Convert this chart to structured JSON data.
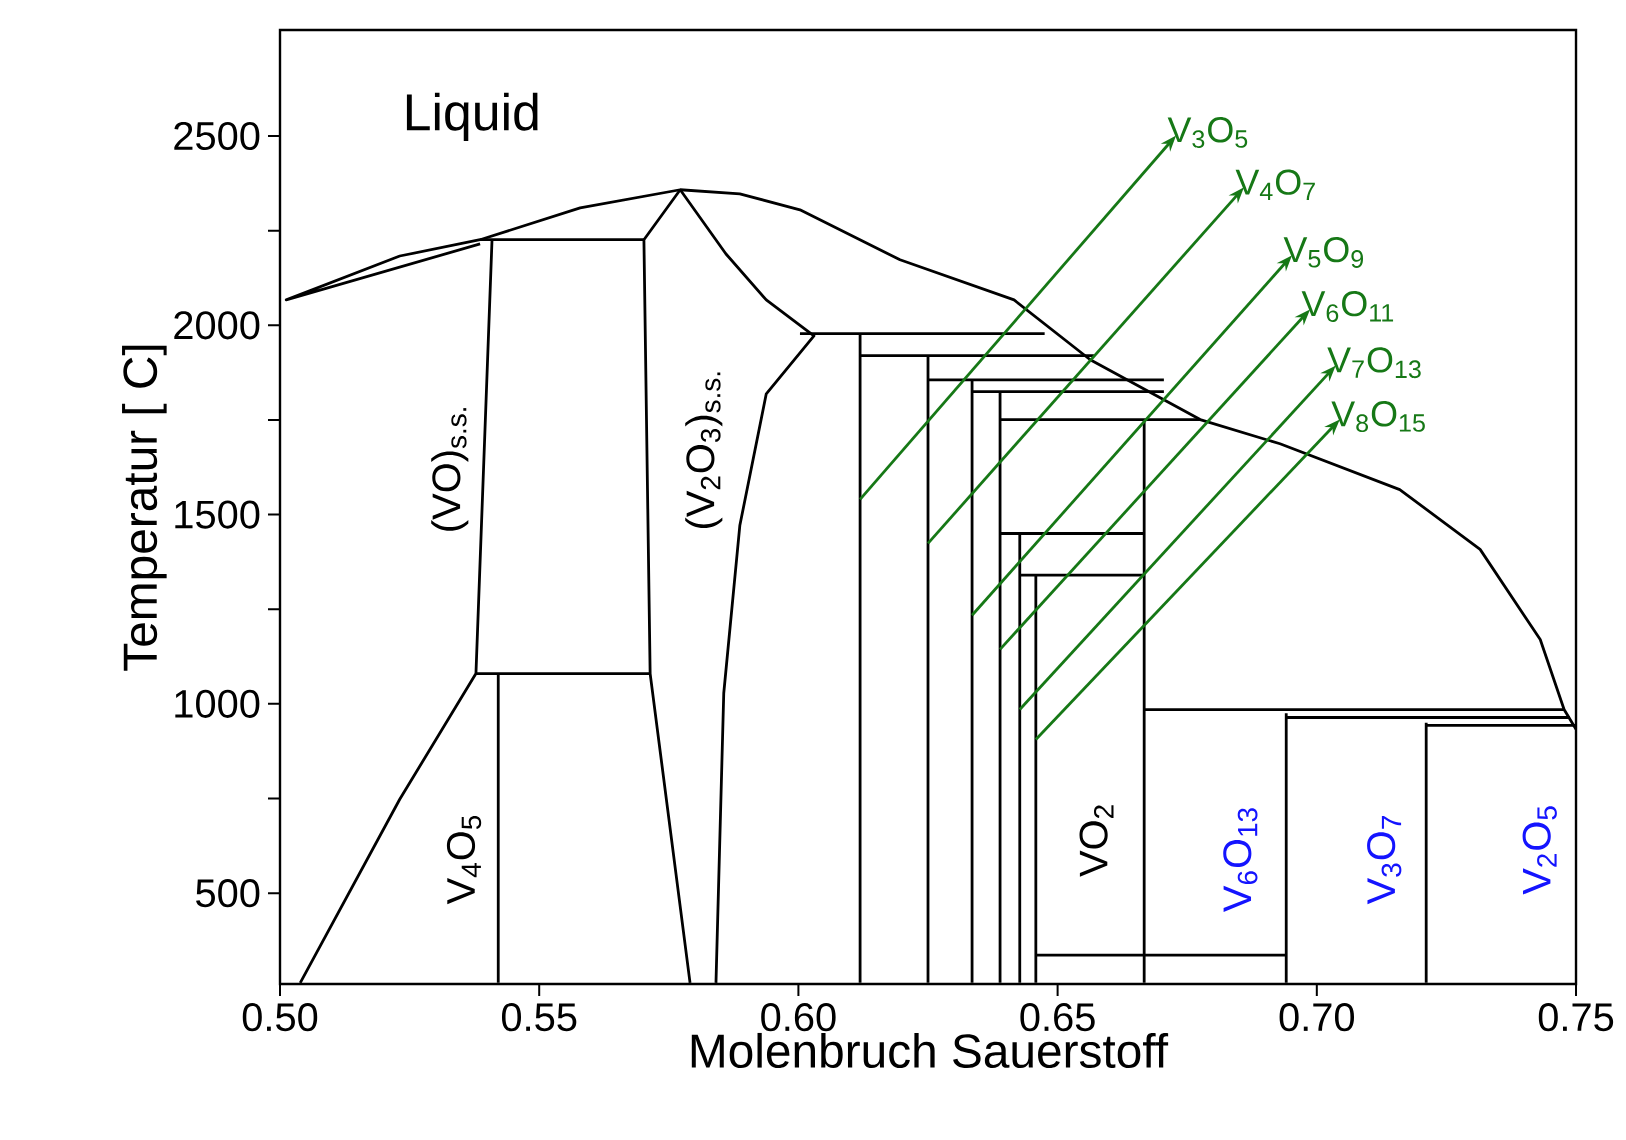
{
  "chart_data": {
    "type": "line",
    "xlabel": "Molenbruch Sauerstoff",
    "ylabel": "Temperatur [ C]",
    "xlim": [
      0.5,
      0.75
    ],
    "ylim": [
      260,
      2780
    ],
    "xticks": [
      {
        "value": 0.5,
        "label": "0.50"
      },
      {
        "value": 0.55,
        "label": "0.55"
      },
      {
        "value": 0.6,
        "label": "0.60"
      },
      {
        "value": 0.65,
        "label": "0.65"
      },
      {
        "value": 0.7,
        "label": "0.70"
      },
      {
        "value": 0.75,
        "label": "0.75"
      }
    ],
    "yticks": [
      500,
      {
        "value": 750,
        "label": null
      },
      1000,
      {
        "value": 1250,
        "label": null
      },
      1500,
      {
        "value": 1750,
        "label": null
      },
      2000,
      {
        "value": 2250,
        "label": null
      },
      2500
    ],
    "grid": false,
    "marker": "none",
    "line_style": "solid",
    "series": [
      {
        "color": "#000000",
        "x": [
          0.5386,
          0.5012,
          0.5231,
          0.5386,
          0.5579,
          0.5772,
          0.5887,
          0.6003,
          0.6196,
          0.6416,
          0.6563,
          0.6775,
          0.6929,
          0.716,
          0.7315,
          0.7431,
          0.7477,
          0.75
        ],
        "values": [
          2215,
          2067,
          2183,
          2226,
          2310,
          2358,
          2347,
          2305,
          2173,
          2067,
          1909,
          1751,
          1687,
          1566,
          1408,
          1170,
          985,
          933
        ]
      },
      {
        "color": "#000000",
        "x": [
          0.5409,
          0.5378,
          0.5231,
          0.5039
        ],
        "values": [
          2226,
          1080,
          748,
          263
        ]
      },
      {
        "color": "#000000",
        "x": [
          0.5386,
          0.5702
        ],
        "values": [
          2226,
          2226
        ]
      },
      {
        "color": "#000000",
        "x": [
          0.5772,
          0.5702,
          0.5714,
          0.5791
        ],
        "values": [
          2358,
          2226,
          1080,
          263
        ]
      },
      {
        "color": "#000000",
        "x": [
          0.5378,
          0.5714
        ],
        "values": [
          1080,
          1080
        ]
      },
      {
        "color": "#000000",
        "x": [
          0.5421,
          0.5421
        ],
        "values": [
          1080,
          263
        ]
      },
      {
        "color": "#000000",
        "x": [
          0.5772,
          0.586,
          0.5938,
          0.603,
          0.5938,
          0.5887,
          0.5856,
          0.5841
        ],
        "values": [
          2358,
          2189,
          2067,
          1972,
          1819,
          1471,
          1028,
          263
        ]
      },
      {
        "color": "#000000",
        "x": [
          0.6003,
          0.6475
        ],
        "values": [
          1978,
          1978
        ]
      },
      {
        "color": "#000000",
        "x": [
          0.6119,
          0.657
        ],
        "values": [
          1920,
          1920
        ]
      },
      {
        "color": "#000000",
        "x": [
          0.625,
          0.6705
        ],
        "values": [
          1856,
          1856
        ]
      },
      {
        "color": "#000000",
        "x": [
          0.6335,
          0.6705
        ],
        "values": [
          1825,
          1825
        ]
      },
      {
        "color": "#000000",
        "x": [
          0.6389,
          0.6775
        ],
        "values": [
          1751,
          1751
        ]
      },
      {
        "color": "#000000",
        "x": [
          0.6389,
          0.6667
        ],
        "values": [
          1450,
          1450
        ]
      },
      {
        "color": "#000000",
        "x": [
          0.6427,
          0.6667
        ],
        "values": [
          1340,
          1340
        ]
      },
      {
        "color": "#000000",
        "x": [
          0.6458,
          0.6941
        ],
        "values": [
          336,
          336
        ]
      },
      {
        "color": "#000000",
        "x": [
          0.6119,
          0.6119
        ],
        "values": [
          1978,
          263
        ]
      },
      {
        "color": "#000000",
        "x": [
          0.625,
          0.625
        ],
        "values": [
          1920,
          263
        ]
      },
      {
        "color": "#000000",
        "x": [
          0.6335,
          0.6335
        ],
        "values": [
          1856,
          263
        ]
      },
      {
        "color": "#000000",
        "x": [
          0.6389,
          0.6389
        ],
        "values": [
          1825,
          263
        ]
      },
      {
        "color": "#000000",
        "x": [
          0.6427,
          0.6427
        ],
        "values": [
          1450,
          263
        ]
      },
      {
        "color": "#000000",
        "x": [
          0.6458,
          0.6458
        ],
        "values": [
          1340,
          263
        ]
      },
      {
        "color": "#000000",
        "x": [
          0.6667,
          0.6667
        ],
        "values": [
          1751,
          263
        ]
      },
      {
        "color": "#000000",
        "x": [
          0.6667,
          0.7477
        ],
        "values": [
          985,
          985
        ]
      },
      {
        "color": "#000000",
        "x": [
          0.6941,
          0.6941
        ],
        "values": [
          975,
          263
        ]
      },
      {
        "color": "#000000",
        "x": [
          0.6941,
          0.7488
        ],
        "values": [
          964,
          964
        ]
      },
      {
        "color": "#000000",
        "x": [
          0.7211,
          0.7211
        ],
        "values": [
          950,
          263
        ]
      },
      {
        "color": "#000000",
        "x": [
          0.7211,
          0.75
        ],
        "values": [
          943,
          943
        ]
      }
    ],
    "annotations": [
      "Liquid",
      "(VO)$_{s.s.}$",
      "(V$_{2}$O$_{3}$)$_{s.s.}$",
      "V$_{4}$O$_{5}$",
      "VO$_{2}$",
      "V$_{6}$O$_{13}$",
      "V$_{3}$O$_{7}$",
      "V$_{2}$O$_{5}$",
      {
        "text": "V$_{3}$O$_{5}$",
        "x": 0.6119,
        "y": 1540
      },
      {
        "text": "V$_{4}$O$_{7}$",
        "x": 0.625,
        "y": 1424
      },
      {
        "text": "V$_{5}$O$_{9}$",
        "x": 0.6335,
        "y": 1234
      },
      {
        "text": "V$_{6}$O$_{11}$",
        "x": 0.6389,
        "y": 1144
      },
      {
        "text": "V$_{7}$O$_{13}$",
        "x": 0.6427,
        "y": 985
      },
      {
        "text": "V$_{8}$O$_{15}$",
        "x": 0.6458,
        "y": 906
      }
    ]
  }
}
